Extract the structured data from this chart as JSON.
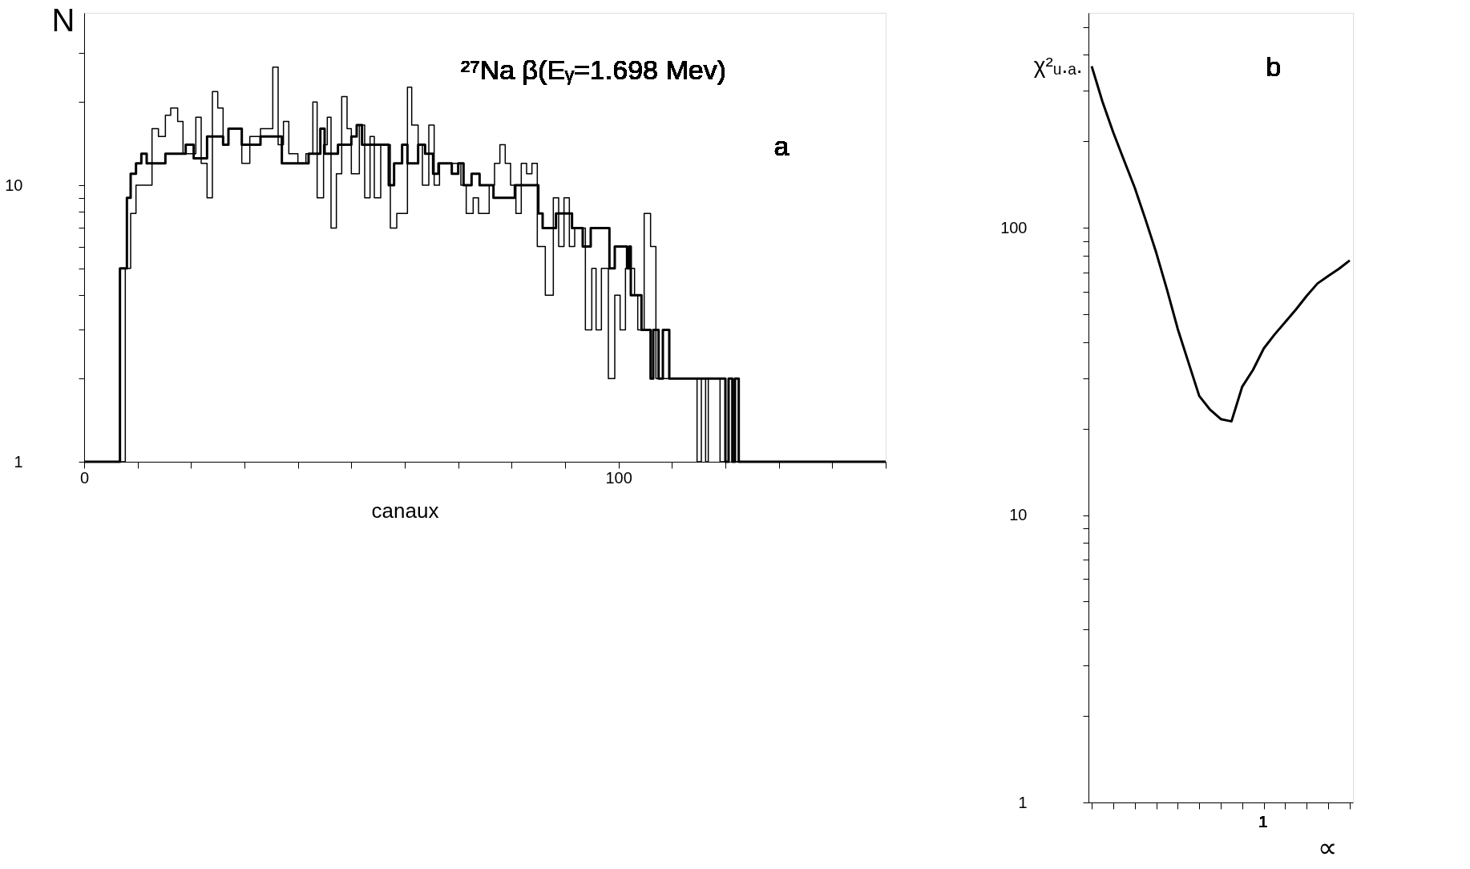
{
  "chart_data": [
    {
      "type": "step",
      "title": "²⁷Na β(Eᵧ=1.698 Mev)",
      "xlabel": "canaux",
      "ylabel": "N",
      "annotations": [
        "a"
      ],
      "log": "y",
      "grid": false,
      "legend": false,
      "xlim": [
        0,
        150
      ],
      "ylim": [
        1,
        42
      ],
      "xticks": [
        0,
        {
          "value": 10,
          "label": null
        },
        {
          "value": 20,
          "label": null
        },
        {
          "value": 30,
          "label": null
        },
        {
          "value": 40,
          "label": null
        },
        {
          "value": 50,
          "label": null
        },
        {
          "value": 60,
          "label": null
        },
        {
          "value": 70,
          "label": null
        },
        {
          "value": 80,
          "label": null
        },
        {
          "value": 90,
          "label": null
        },
        100,
        {
          "value": 110,
          "label": null
        },
        {
          "value": 120,
          "label": null
        },
        {
          "value": 130,
          "label": null
        },
        {
          "value": 140,
          "label": null
        },
        {
          "value": 150,
          "label": null
        }
      ],
      "yticks": [
        1,
        {
          "value": 2,
          "label": null
        },
        {
          "value": 3,
          "label": null
        },
        {
          "value": 4,
          "label": null
        },
        {
          "value": 5,
          "label": null
        },
        {
          "value": 6,
          "label": null
        },
        {
          "value": 7,
          "label": null
        },
        {
          "value": 8,
          "label": null
        },
        {
          "value": 9,
          "label": null
        },
        10,
        {
          "value": 20,
          "label": null
        },
        {
          "value": 30,
          "label": null
        }
      ],
      "series": [
        {
          "color": "#000000",
          "x": [
            0,
            6.7,
            8,
            8.7,
            9.7,
            10.7,
            11.7,
            15.2,
            17.5,
            19,
            20.5,
            23,
            26,
            27,
            29.5,
            33,
            37,
            42,
            44.2,
            45,
            47.5,
            50,
            51,
            52,
            57,
            58,
            59.5,
            60.5,
            62.5,
            63.8,
            65.3,
            66.3,
            68.8,
            70,
            71,
            72.5,
            74,
            76.6,
            80.6,
            85,
            85.8,
            88.3,
            91.3,
            93.3,
            94.8,
            98.3,
            99.3,
            101.6,
            102,
            102.3,
            104.3,
            106,
            106.5,
            107.5,
            108.3,
            109.5,
            120,
            120.6,
            121.3,
            121.8,
            122.5,
            150
          ],
          "values": [
            1,
            5,
            9,
            11,
            12,
            13,
            12,
            13,
            13,
            14,
            12.5,
            15,
            14,
            16,
            14,
            15,
            12,
            13,
            16,
            13,
            14,
            15,
            16.5,
            14,
            10,
            12,
            14,
            12,
            14,
            13,
            11,
            12,
            11,
            12,
            10,
            11,
            10,
            9,
            10,
            7.9,
            7,
            7.9,
            7,
            6,
            7,
            5,
            6,
            5,
            6,
            4,
            3,
            2,
            3,
            2,
            3,
            2,
            1,
            2,
            1,
            2,
            1,
            1
          ]
        },
        {
          "color": "#000000",
          "x": [
            0,
            7.7,
            8.7,
            9.7,
            12.7,
            13.9,
            15.2,
            16.2,
            17.5,
            18.5,
            20.9,
            21.9,
            23,
            24,
            25,
            26,
            27,
            29.5,
            31,
            33,
            35.3,
            36.3,
            37.3,
            38.3,
            40,
            41.5,
            42.8,
            43.6,
            44.8,
            45.5,
            46.2,
            47.2,
            48.2,
            49.2,
            50,
            51.5,
            52.5,
            53.5,
            54.3,
            55.5,
            57.3,
            58.5,
            60.5,
            61.3,
            62.5,
            63.3,
            64.5,
            65.5,
            66.5,
            70.5,
            71.5,
            72.8,
            73.8,
            75.8,
            76.8,
            77.8,
            78.8,
            79.8,
            80.8,
            81.8,
            82.8,
            83.8,
            84.8,
            86.3,
            87.8,
            88.8,
            89.8,
            90.8,
            91.8,
            93.8,
            95,
            95.8,
            96.8,
            98.1,
            99.3,
            100.3,
            101.3,
            103,
            103.6,
            104.8,
            106,
            107,
            114.7,
            115.5,
            116.3,
            116.8,
            119,
            120.6,
            121.5,
            150
          ],
          "values": [
            1,
            5,
            7.9,
            10,
            16,
            15,
            17.9,
            19,
            17,
            13,
            17.6,
            12,
            9,
            21.8,
            19,
            14,
            16,
            12,
            15,
            16,
            26.7,
            14,
            17,
            13,
            12,
            13,
            20,
            9,
            14,
            17.6,
            7,
            11,
            20.9,
            16,
            11,
            16.5,
            9,
            15,
            9,
            14,
            7,
            7.9,
            22.6,
            16.5,
            14,
            10,
            16.5,
            10,
            12,
            10,
            7.9,
            9,
            7.9,
            10,
            12,
            14,
            12,
            10,
            7.9,
            12,
            11,
            12,
            6,
            4,
            9,
            6,
            9,
            6,
            7,
            3,
            5,
            3,
            5,
            2,
            4,
            3,
            5,
            4,
            3,
            7.9,
            6,
            2,
            1,
            2,
            1,
            2,
            1,
            2,
            1,
            1
          ]
        }
      ]
    },
    {
      "type": "line",
      "xlabel": "∝",
      "ylabel": "χ²ᵤ.ₐ.",
      "annotations": [
        "b",
        "1"
      ],
      "log": "y",
      "grid": false,
      "legend": false,
      "categories": [
        null,
        null,
        null,
        null,
        null,
        null,
        null,
        null,
        null,
        null,
        null,
        null,
        null,
        null,
        null,
        null,
        null,
        null,
        null,
        null,
        null,
        null,
        null,
        null,
        null
      ],
      "ylim": [
        1,
        560
      ],
      "yticks": [
        1,
        {
          "value": 2,
          "label": null
        },
        {
          "value": 3,
          "label": null
        },
        {
          "value": 4,
          "label": null
        },
        {
          "value": 5,
          "label": null
        },
        {
          "value": 6,
          "label": null
        },
        {
          "value": 7,
          "label": null
        },
        {
          "value": 8,
          "label": null
        },
        {
          "value": 9,
          "label": null
        },
        10,
        {
          "value": 20,
          "label": null
        },
        {
          "value": 30,
          "label": null
        },
        {
          "value": 40,
          "label": null
        },
        {
          "value": 50,
          "label": null
        },
        {
          "value": 60,
          "label": null
        },
        {
          "value": 70,
          "label": null
        },
        {
          "value": 80,
          "label": null
        },
        {
          "value": 90,
          "label": null
        },
        100,
        {
          "value": 200,
          "label": null
        },
        {
          "value": 300,
          "label": null
        },
        {
          "value": 400,
          "label": null
        },
        {
          "value": 500,
          "label": null
        }
      ],
      "series": [
        {
          "color": "#000000",
          "values": [
            365,
            275,
            215,
            172,
            138,
            107,
            82,
            61,
            44.5,
            34,
            26,
            23.3,
            21.6,
            21.2,
            28,
            32,
            38,
            42.5,
            47,
            52,
            58,
            64,
            68,
            72,
            77
          ]
        }
      ]
    }
  ]
}
